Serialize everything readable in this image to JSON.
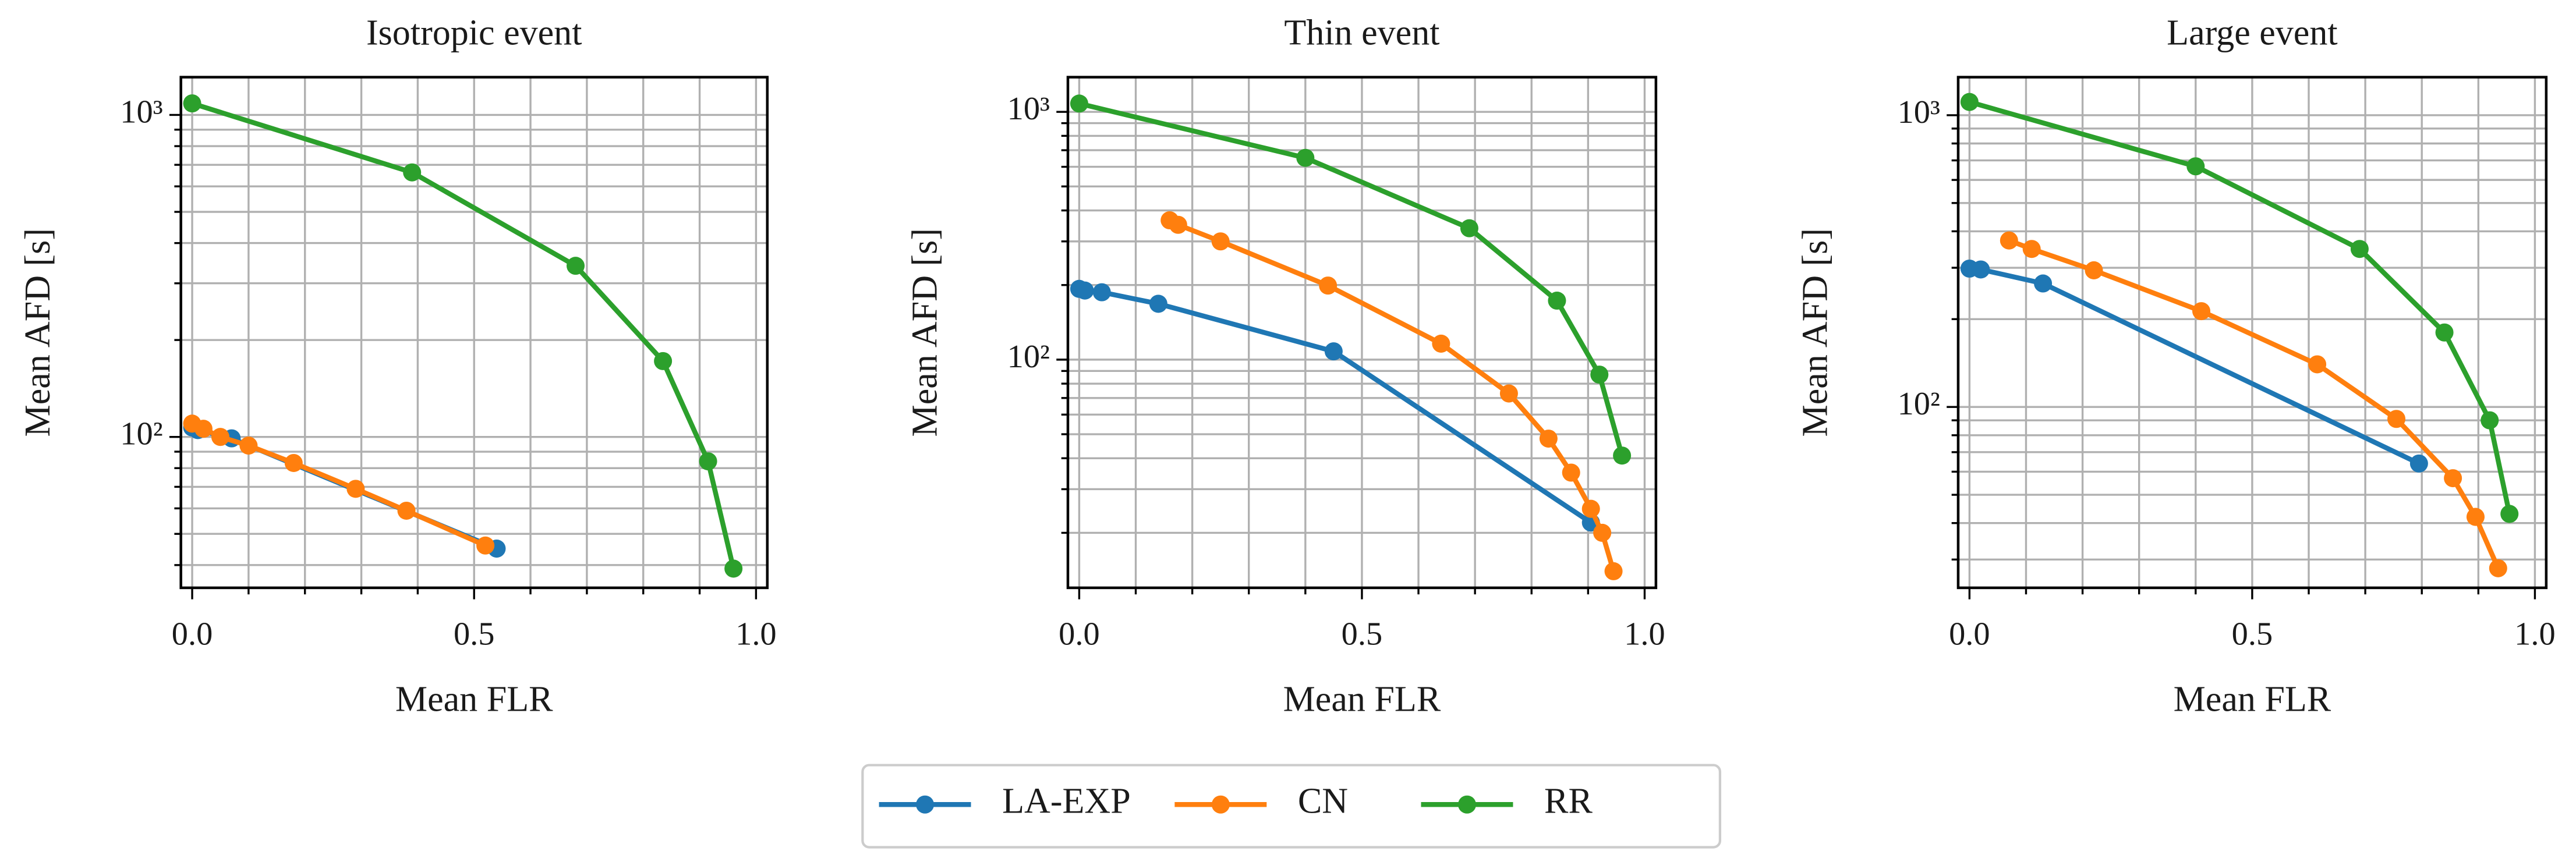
{
  "chart_data": [
    {
      "type": "line",
      "title": "Isotropic event",
      "xlabel": "Mean FLR",
      "ylabel": "Mean AFD [s]",
      "log_y": true,
      "grid": true,
      "xlim": [
        -0.02,
        1.02
      ],
      "xticks": [
        {
          "value": 0,
          "label": "0.0"
        },
        0.5,
        {
          "value": 1,
          "label": "1.0"
        }
      ],
      "minor_xticks": [
        0.1,
        0.2,
        0.3,
        0.4,
        0.6,
        0.7,
        0.8,
        0.9
      ],
      "ylim": [
        34,
        1310
      ],
      "yticks": [
        {
          "value": 100,
          "label": "10²"
        },
        {
          "value": 1000,
          "label": "10³"
        }
      ],
      "minor_yticks": [
        40,
        50,
        60,
        70,
        80,
        90,
        200,
        300,
        400,
        500,
        600,
        700,
        800,
        900
      ],
      "series": [
        {
          "name": "LA-EXP",
          "color": "#1f77b4",
          "x": [
            0,
            0.01,
            0.07,
            0.54
          ],
          "values": [
            107,
            105,
            99,
            45
          ]
        },
        {
          "name": "CN",
          "color": "#ff7f0e",
          "x": [
            0,
            0.02,
            0.05,
            0.1,
            0.18,
            0.29,
            0.38,
            0.52
          ],
          "values": [
            110,
            106,
            100,
            94,
            83,
            69,
            59,
            46
          ]
        },
        {
          "name": "RR",
          "color": "#2ca02c",
          "x": [
            0,
            0.39,
            0.68,
            0.835,
            0.915,
            0.96
          ],
          "values": [
            1086,
            663,
            340,
            172,
            84,
            39
          ]
        }
      ]
    },
    {
      "type": "line",
      "title": "Thin event",
      "xlabel": "Mean FLR",
      "ylabel": "Mean AFD [s]",
      "log_y": true,
      "grid": true,
      "xlim": [
        -0.02,
        1.02
      ],
      "xticks": [
        {
          "value": 0,
          "label": "0.0"
        },
        0.5,
        {
          "value": 1,
          "label": "1.0"
        }
      ],
      "minor_xticks": [
        0.1,
        0.2,
        0.3,
        0.4,
        0.6,
        0.7,
        0.8,
        0.9
      ],
      "ylim": [
        12,
        1380
      ],
      "yticks": [
        {
          "value": 100,
          "label": "10²"
        },
        {
          "value": 1000,
          "label": "10³"
        }
      ],
      "minor_yticks": [
        20,
        30,
        40,
        50,
        60,
        70,
        80,
        90,
        200,
        300,
        400,
        500,
        600,
        700,
        800,
        900
      ],
      "series": [
        {
          "name": "LA-EXP",
          "color": "#1f77b4",
          "x": [
            0,
            0.01,
            0.04,
            0.14,
            0.45,
            0.905
          ],
          "values": [
            193,
            190,
            187,
            168,
            108,
            22
          ]
        },
        {
          "name": "CN",
          "color": "#ff7f0e",
          "x": [
            0.16,
            0.175,
            0.25,
            0.44,
            0.64,
            0.76,
            0.83,
            0.87,
            0.905,
            0.925,
            0.945
          ],
          "values": [
            365,
            350,
            300,
            199,
            116,
            73,
            48,
            35,
            25,
            20,
            14
          ]
        },
        {
          "name": "RR",
          "color": "#2ca02c",
          "x": [
            0,
            0.4,
            0.69,
            0.845,
            0.92,
            0.96
          ],
          "values": [
            1080,
            652,
            339,
            173,
            87,
            41
          ]
        }
      ]
    },
    {
      "type": "line",
      "title": "Large event",
      "xlabel": "Mean FLR",
      "ylabel": "Mean AFD [s]",
      "log_y": true,
      "grid": true,
      "xlim": [
        -0.02,
        1.02
      ],
      "xticks": [
        {
          "value": 0,
          "label": "0.0"
        },
        0.5,
        {
          "value": 1,
          "label": "1.0"
        }
      ],
      "minor_xticks": [
        0.1,
        0.2,
        0.3,
        0.4,
        0.6,
        0.7,
        0.8,
        0.9
      ],
      "ylim": [
        24,
        1350
      ],
      "yticks": [
        {
          "value": 100,
          "label": "10²"
        },
        {
          "value": 1000,
          "label": "10³"
        }
      ],
      "minor_yticks": [
        30,
        40,
        50,
        60,
        70,
        80,
        90,
        200,
        300,
        400,
        500,
        600,
        700,
        800,
        900
      ],
      "series": [
        {
          "name": "LA-EXP",
          "color": "#1f77b4",
          "x": [
            0,
            0.02,
            0.13,
            0.795
          ],
          "values": [
            298,
            296,
            265,
            64
          ]
        },
        {
          "name": "CN",
          "color": "#ff7f0e",
          "x": [
            0.07,
            0.11,
            0.22,
            0.41,
            0.615,
            0.755,
            0.855,
            0.895,
            0.935
          ],
          "values": [
            372,
            348,
            294,
            213,
            140,
            91,
            57,
            42,
            28
          ]
        },
        {
          "name": "RR",
          "color": "#2ca02c",
          "x": [
            0,
            0.4,
            0.69,
            0.84,
            0.92,
            0.955
          ],
          "values": [
            1110,
            668,
            348,
            180,
            90,
            43
          ]
        }
      ]
    }
  ]
}
